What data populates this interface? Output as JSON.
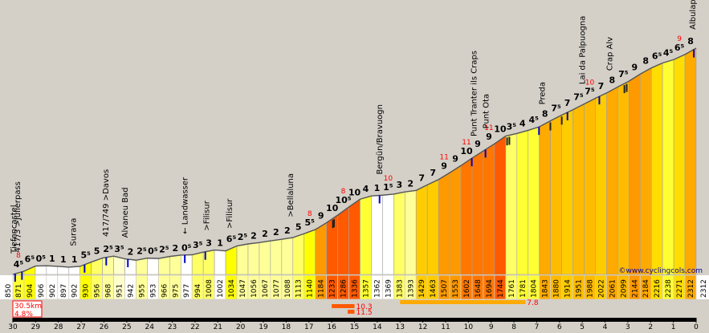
{
  "chart_data": {
    "type": "area",
    "title": "",
    "xlabel": "",
    "ylabel": "",
    "x_direction": "descending",
    "x_km": [
      30,
      29,
      28,
      27,
      26,
      25,
      24,
      23,
      22,
      21,
      20,
      19,
      18,
      17,
      16,
      15,
      14,
      13,
      12,
      11,
      10,
      9,
      8,
      7,
      6,
      5,
      4,
      3,
      2,
      1,
      0
    ],
    "km_tick_labels": [
      "30",
      "29",
      "28",
      "27",
      "26",
      "25",
      "24",
      "23",
      "22",
      "21",
      "20",
      "19",
      "18",
      "17",
      "16",
      "15",
      "14",
      "13",
      "12",
      "11",
      "10",
      "9",
      "8",
      "7",
      "6",
      "5",
      "4",
      "3",
      "2",
      "1",
      "0"
    ],
    "y_min": 850,
    "y_max": 2312,
    "y_axis_min_label": "850",
    "y_axis_max_label": "2312",
    "segments": [
      {
        "start_alt": 850,
        "end_alt": 871,
        "label": "4⁵",
        "color": "#ffff33"
      },
      {
        "start_alt": 871,
        "end_alt": 904,
        "label": "6⁵",
        "color": "#ffff00"
      },
      {
        "start_alt": 904,
        "end_alt": 906,
        "label": "0⁵",
        "color": "#ffffff"
      },
      {
        "start_alt": 906,
        "end_alt": 902,
        "label": "1",
        "color": "#ffffff"
      },
      {
        "start_alt": 902,
        "end_alt": 897,
        "label": "1",
        "color": "#ffffff"
      },
      {
        "start_alt": 897,
        "end_alt": 902,
        "label": "1",
        "color": "#ffffff"
      },
      {
        "start_alt": 902,
        "end_alt": 930,
        "label": "5⁵",
        "color": "#ffff00"
      },
      {
        "start_alt": 930,
        "end_alt": 956,
        "label": "5",
        "color": "#ffff66"
      },
      {
        "start_alt": 956,
        "end_alt": 968,
        "label": "2⁵",
        "color": "#ffff99"
      },
      {
        "start_alt": 968,
        "end_alt": 951,
        "label": "3⁵",
        "color": "#ffffcc"
      },
      {
        "start_alt": 951,
        "end_alt": 942,
        "label": "2",
        "color": "#ffffff"
      },
      {
        "start_alt": 942,
        "end_alt": 955,
        "label": "2⁵",
        "color": "#ffff99"
      },
      {
        "start_alt": 955,
        "end_alt": 953,
        "label": "0⁵",
        "color": "#ffffff"
      },
      {
        "start_alt": 953,
        "end_alt": 966,
        "label": "2⁵",
        "color": "#ffff99"
      },
      {
        "start_alt": 966,
        "end_alt": 975,
        "label": "2",
        "color": "#ffff99"
      },
      {
        "start_alt": 975,
        "end_alt": 977,
        "label": "0⁵",
        "color": "#ffffff"
      },
      {
        "start_alt": 977,
        "end_alt": 994,
        "label": "3⁵",
        "color": "#ffff66"
      },
      {
        "start_alt": 994,
        "end_alt": 1008,
        "label": "3",
        "color": "#ffff66"
      },
      {
        "start_alt": 1008,
        "end_alt": 1002,
        "label": "1",
        "color": "#ffffff"
      },
      {
        "start_alt": 1002,
        "end_alt": 1034,
        "label": "6⁵",
        "color": "#ffff00"
      },
      {
        "start_alt": 1034,
        "end_alt": 1047,
        "label": "2⁵",
        "color": "#ffff99"
      },
      {
        "start_alt": 1047,
        "end_alt": 1056,
        "label": "2",
        "color": "#ffff99"
      },
      {
        "start_alt": 1056,
        "end_alt": 1067,
        "label": "2",
        "color": "#ffff99"
      },
      {
        "start_alt": 1067,
        "end_alt": 1077,
        "label": "2",
        "color": "#ffff99"
      },
      {
        "start_alt": 1077,
        "end_alt": 1088,
        "label": "2",
        "color": "#ffff99"
      },
      {
        "start_alt": 1088,
        "end_alt": 1113,
        "label": "5",
        "color": "#ffff66"
      },
      {
        "start_alt": 1113,
        "end_alt": 1140,
        "label": "5⁵",
        "color": "#ffff00"
      },
      {
        "start_alt": 1140,
        "end_alt": 1184,
        "label": "9",
        "color": "#ff9900"
      },
      {
        "start_alt": 1184,
        "end_alt": 1233,
        "label": "10",
        "color": "#ff5a00"
      },
      {
        "start_alt": 1233,
        "end_alt": 1286,
        "label": "10⁵",
        "color": "#ff5a00"
      },
      {
        "start_alt": 1286,
        "end_alt": 1336,
        "label": "10",
        "color": "#ff5a00"
      },
      {
        "start_alt": 1336,
        "end_alt": 1357,
        "label": "4",
        "color": "#ffff33"
      },
      {
        "start_alt": 1357,
        "end_alt": 1362,
        "label": "1",
        "color": "#ffffff"
      },
      {
        "start_alt": 1362,
        "end_alt": 1369,
        "label": "1⁵",
        "color": "#ffffff"
      },
      {
        "start_alt": 1369,
        "end_alt": 1383,
        "label": "3",
        "color": "#ffff66"
      },
      {
        "start_alt": 1383,
        "end_alt": 1393,
        "label": "2",
        "color": "#ffff99"
      },
      {
        "start_alt": 1393,
        "end_alt": 1429,
        "label": "7",
        "color": "#ffcc00"
      },
      {
        "start_alt": 1429,
        "end_alt": 1463,
        "label": "7",
        "color": "#ffcc00"
      },
      {
        "start_alt": 1463,
        "end_alt": 1507,
        "label": "9",
        "color": "#ff9900"
      },
      {
        "start_alt": 1507,
        "end_alt": 1553,
        "label": "9",
        "color": "#ff9900"
      },
      {
        "start_alt": 1553,
        "end_alt": 1602,
        "label": "10",
        "color": "#ff7700"
      },
      {
        "start_alt": 1602,
        "end_alt": 1648,
        "label": "9",
        "color": "#ff7700"
      },
      {
        "start_alt": 1648,
        "end_alt": 1694,
        "label": "9",
        "color": "#ff7700"
      },
      {
        "start_alt": 1694,
        "end_alt": 1744,
        "label": "10",
        "color": "#ff5a00"
      },
      {
        "start_alt": 1744,
        "end_alt": 1761,
        "label": "3⁵",
        "color": "#ffff66"
      },
      {
        "start_alt": 1761,
        "end_alt": 1781,
        "label": "4",
        "color": "#ffff33"
      },
      {
        "start_alt": 1781,
        "end_alt": 1804,
        "label": "4⁵",
        "color": "#ffff33"
      },
      {
        "start_alt": 1804,
        "end_alt": 1843,
        "label": "8",
        "color": "#ffaa00"
      },
      {
        "start_alt": 1843,
        "end_alt": 1880,
        "label": "7⁵",
        "color": "#ffbb00"
      },
      {
        "start_alt": 1880,
        "end_alt": 1914,
        "label": "7",
        "color": "#ffcc00"
      },
      {
        "start_alt": 1914,
        "end_alt": 1951,
        "label": "7⁵",
        "color": "#ffbb00"
      },
      {
        "start_alt": 1951,
        "end_alt": 1988,
        "label": "7⁵",
        "color": "#ffbb00"
      },
      {
        "start_alt": 1988,
        "end_alt": 2022,
        "label": "7",
        "color": "#ffcc00"
      },
      {
        "start_alt": 2022,
        "end_alt": 2061,
        "label": "8",
        "color": "#ffaa00"
      },
      {
        "start_alt": 2061,
        "end_alt": 2099,
        "label": "7⁵",
        "color": "#ffbb00"
      },
      {
        "start_alt": 2099,
        "end_alt": 2144,
        "label": "9",
        "color": "#ff9900"
      },
      {
        "start_alt": 2144,
        "end_alt": 2184,
        "label": "8",
        "color": "#ffaa00"
      },
      {
        "start_alt": 2184,
        "end_alt": 2216,
        "label": "6⁵",
        "color": "#ffdd00"
      },
      {
        "start_alt": 2216,
        "end_alt": 2238,
        "label": "4⁵",
        "color": "#ffff33"
      },
      {
        "start_alt": 2238,
        "end_alt": 2271,
        "label": "6⁵",
        "color": "#ffdd00"
      },
      {
        "start_alt": 2271,
        "end_alt": 2312,
        "label": "8",
        "color": "#ffaa00"
      }
    ],
    "max_gradients": [
      {
        "after_segment": 0,
        "value": "8"
      },
      {
        "after_segment": 26,
        "value": "8"
      },
      {
        "after_segment": 29,
        "value": "8"
      },
      {
        "after_segment": 33,
        "value": "10"
      },
      {
        "after_segment": 38,
        "value": "11"
      },
      {
        "after_segment": 40,
        "value": "11"
      },
      {
        "after_segment": 42,
        "value": "11"
      },
      {
        "after_segment": 51,
        "value": "10"
      },
      {
        "after_segment": 59,
        "value": "9"
      }
    ],
    "places": [
      {
        "label": "Tiefencastel",
        "km": 29.98
      },
      {
        "label": "417/3 >Julierpass",
        "km": 29.82
      },
      {
        "label": "Surava",
        "km": 27.37
      },
      {
        "label": "417/749 >Davos",
        "km": 25.95
      },
      {
        "label": "Alvaneu Bad",
        "km": 25.1
      },
      {
        "label": "← Landwasser",
        "km": 22.48
      },
      {
        "label": ">Filisur",
        "km": 21.52
      },
      {
        "label": ">Filisur",
        "km": 20.52
      },
      {
        "label": ">Bellaluna",
        "km": 17.83
      },
      {
        "label": "Bergün/Bravuogn",
        "km": 13.92
      },
      {
        "label": "Punt Tranter ils Craps",
        "km": 9.78
      },
      {
        "label": "Punt Ota",
        "km": 9.25
      },
      {
        "label": "Preda",
        "km": 6.78
      },
      {
        "label": "Lai da Palpuogna",
        "km": 5.02
      },
      {
        "label": "Crap Alv",
        "km": 3.82
      },
      {
        "label": "Albulapass",
        "km": 0.18
      }
    ],
    "blue_markers_km": [
      29.9,
      29.6,
      26.85,
      25.9,
      24.95,
      22.45,
      21.55,
      13.9,
      9.85,
      9.25,
      6.9,
      5.65,
      4.25,
      0.1
    ],
    "black_markers_km": [
      15.95,
      15.9,
      8.3,
      8.2,
      6.4,
      5.9,
      3.15,
      3.05
    ],
    "stats": {
      "distance": "30.5km",
      "avg_grade": "4.8%"
    },
    "legend_bars": [
      {
        "label": "10.3",
        "km_from": 16.0,
        "km_to": 15.0,
        "color": "#ff5a00"
      },
      {
        "label": "11.5",
        "km_from": 15.3,
        "km_to": 15.0,
        "color": "#ff5a00"
      },
      {
        "label": "7.8",
        "km_from": 13.0,
        "km_to": 7.5,
        "color": "#ffaa00"
      }
    ],
    "watermark": "©www.cyclingcols.com"
  }
}
